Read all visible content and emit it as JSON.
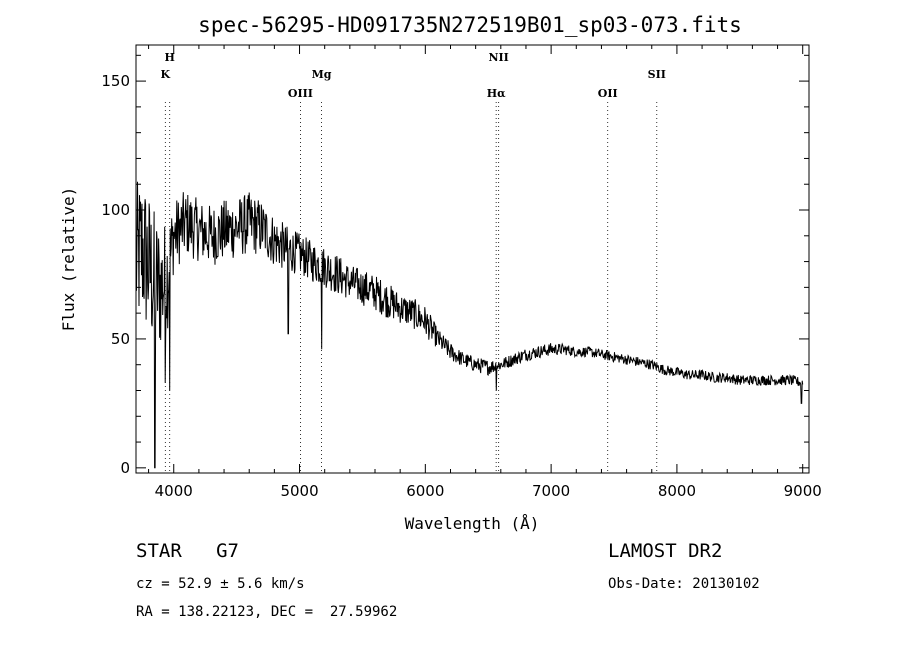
{
  "chart_data": {
    "type": "line",
    "title": "spec-56295-HD091735N272519B01_sp03-073.fits",
    "xlabel": "Wavelength (Å)",
    "ylabel": "Flux (relative)",
    "xlim": [
      3700,
      9050
    ],
    "ylim": [
      -2,
      164
    ],
    "xticks": [
      4000,
      5000,
      6000,
      7000,
      8000,
      9000
    ],
    "yticks": [
      0,
      50,
      100,
      150
    ],
    "grid": false,
    "series": [
      {
        "name": "flux",
        "anchors_x": [
          3700,
          3750,
          3800,
          3850,
          3900,
          3950,
          4000,
          4100,
          4200,
          4300,
          4400,
          4500,
          4600,
          4700,
          4800,
          4900,
          5000,
          5100,
          5200,
          5300,
          5400,
          5500,
          5600,
          5700,
          5800,
          5900,
          6000,
          6100,
          6200,
          6300,
          6400,
          6500,
          6600,
          6700,
          6800,
          6900,
          7000,
          7100,
          7200,
          7300,
          7400,
          7500,
          7600,
          7700,
          7800,
          7900,
          8000,
          8100,
          8200,
          8300,
          8400,
          8500,
          8600,
          8700,
          8800,
          8900,
          9000
        ],
        "anchors_y": [
          80,
          85,
          78,
          72,
          70,
          75,
          90,
          95,
          92,
          90,
          92,
          93,
          95,
          93,
          88,
          85,
          83,
          80,
          78,
          75,
          72,
          70,
          68,
          65,
          62,
          60,
          57,
          50,
          45,
          42,
          40,
          39,
          40,
          42,
          44,
          45,
          46,
          46,
          45,
          45,
          44,
          43,
          42,
          41,
          40,
          38,
          37,
          36,
          36,
          35,
          35,
          34,
          34,
          34,
          34,
          34,
          33
        ],
        "noise_amp": [
          30,
          30,
          30,
          28,
          25,
          22,
          14,
          13,
          12,
          12,
          12,
          12,
          12,
          11,
          10,
          9,
          8,
          8,
          8,
          8,
          7,
          7,
          7,
          7,
          6,
          6,
          6,
          4,
          3.5,
          3,
          3,
          3,
          2.5,
          2.5,
          2.5,
          2.5,
          2.5,
          2.2,
          2,
          2,
          2,
          2,
          2,
          2,
          2,
          2,
          2,
          2,
          2,
          2,
          2,
          2,
          2,
          2,
          2,
          2,
          2
        ],
        "features": [
          {
            "x": 3850,
            "y": 0
          },
          {
            "x": 3933,
            "y": 33
          },
          {
            "x": 3968,
            "y": 30
          },
          {
            "x": 4910,
            "y": 52
          },
          {
            "x": 5175,
            "y": 46
          },
          {
            "x": 6563,
            "y": 30
          },
          {
            "x": 8990,
            "y": 25
          }
        ]
      }
    ],
    "lines": [
      {
        "x": 3933,
        "label": "K",
        "row": 2
      },
      {
        "x": 3968,
        "label": "H",
        "row": 1
      },
      {
        "x": 5007,
        "label": "OIII",
        "row": 3
      },
      {
        "x": 5175,
        "label": "Mg",
        "row": 2
      },
      {
        "x": 6563,
        "label": "Hα",
        "row": 3
      },
      {
        "x": 6583,
        "label": "NII",
        "row": 1
      },
      {
        "x": 7450,
        "label": "OII",
        "row": 3
      },
      {
        "x": 7840,
        "label": "SII",
        "row": 2
      }
    ]
  },
  "info": {
    "star_line": "STAR   G7",
    "cz_line": "cz = 52.9 ± 5.6 km/s",
    "radec_line": "RA = 138.22123, DEC =  27.59962",
    "survey": "LAMOST DR2",
    "obsdate": "Obs-Date: 20130102"
  }
}
